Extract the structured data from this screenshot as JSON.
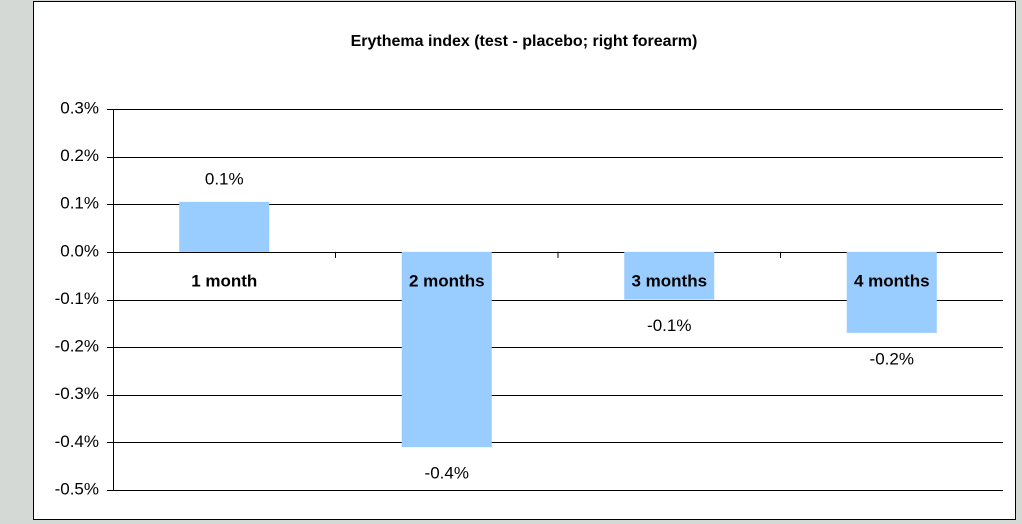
{
  "chart_data": {
    "type": "bar",
    "title": "Erythema index (test - placebo; right forearm)",
    "categories": [
      "1 month",
      "2 months",
      "3 months",
      "4 months"
    ],
    "values": [
      0.105,
      -0.41,
      -0.1,
      -0.17
    ],
    "value_labels": [
      "0.1%",
      "-0.4%",
      "-0.1%",
      "-0.2%"
    ],
    "color": "#99ccff",
    "ylim": [
      -0.5,
      0.3
    ],
    "yticks": [
      {
        "value": 0.3,
        "label": "0.3%"
      },
      {
        "value": 0.2,
        "label": "0.2%"
      },
      {
        "value": 0.1,
        "label": "0.1%"
      },
      {
        "value": 0,
        "label": "0.0%"
      },
      {
        "value": -0.1,
        "label": "-0.1%"
      },
      {
        "value": -0.2,
        "label": "-0.2%"
      },
      {
        "value": -0.3,
        "label": "-0.3%"
      },
      {
        "value": -0.4,
        "label": "-0.4%"
      },
      {
        "value": -0.5,
        "label": "-0.5%"
      }
    ],
    "grid": true
  }
}
